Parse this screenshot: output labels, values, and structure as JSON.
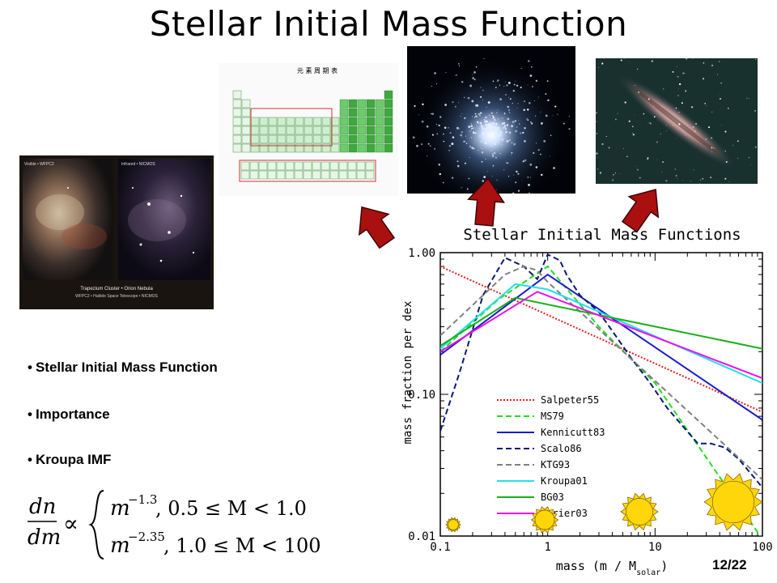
{
  "slide": {
    "title": "Stellar Initial Mass Function",
    "page_number": "12/22"
  },
  "images": {
    "orion": {
      "left_label": "Visible • WFPC2",
      "right_label": "Infrared • NICMOS",
      "caption_line1": "Trapezium Cluster • Orion Nebula",
      "caption_line2": "WFPC2 • Hubble Space Telescope • NICMOS"
    },
    "periodic_table": {
      "heading": "元 素 周 期 表"
    }
  },
  "bullets": [
    "Stellar Initial Mass Function",
    "Importance",
    "Kroupa IMF"
  ],
  "equation": {
    "lhs_num": "dn",
    "lhs_den": "dm",
    "proportional": "∝",
    "case1_base": "m",
    "case1_exp": "−1.3",
    "case1_cond": ", 0.5 ≤ M < 1.0",
    "case2_base": "m",
    "case2_exp": "−2.35",
    "case2_cond": ", 1.0 ≤ M < 100"
  },
  "chart_data": {
    "type": "line",
    "title": "Stellar Initial Mass Functions",
    "xlabel": "mass (m / M",
    "xlabel_sub": "solar",
    "xlabel_close": ")",
    "ylabel": "mass fraction per dex",
    "xscale": "log",
    "yscale": "log",
    "xlim": [
      0.1,
      100
    ],
    "ylim": [
      0.01,
      1.0
    ],
    "xticks": [
      0.1,
      1,
      10,
      100
    ],
    "xtick_labels": [
      "0.1",
      "1",
      "10",
      "100"
    ],
    "yticks": [
      0.01,
      0.1,
      1.0
    ],
    "ytick_labels": [
      "0.01",
      "0.10",
      "1.00"
    ],
    "legend_position": "lower-middle",
    "series": [
      {
        "name": "Salpeter55",
        "color": "#e02020",
        "dash": "dot",
        "x": [
          0.1,
          100
        ],
        "y": [
          0.8,
          0.075
        ]
      },
      {
        "name": "MS79",
        "color": "#22dd22",
        "dash": "dash",
        "x": [
          0.1,
          0.35,
          1,
          3,
          10,
          100
        ],
        "y": [
          0.2,
          0.47,
          0.8,
          0.3,
          0.12,
          0.0095
        ]
      },
      {
        "name": "Kennicutt83",
        "color": "#1a1acc",
        "dash": "solid",
        "x": [
          0.1,
          1,
          100
        ],
        "y": [
          0.19,
          0.7,
          0.066
        ]
      },
      {
        "name": "Scalo86",
        "color": "#0a1a6e",
        "dash": "dash",
        "x": [
          0.1,
          0.15,
          0.25,
          0.4,
          0.6,
          0.8,
          1.0,
          1.3,
          1.5,
          2.0,
          3.0,
          4.0,
          6.0,
          9.0,
          13,
          18,
          25,
          33,
          45,
          60,
          100
        ],
        "y": [
          0.055,
          0.14,
          0.5,
          0.92,
          0.8,
          0.65,
          0.97,
          0.88,
          0.7,
          0.5,
          0.38,
          0.28,
          0.18,
          0.12,
          0.08,
          0.06,
          0.045,
          0.045,
          0.042,
          0.035,
          0.022
        ]
      },
      {
        "name": "KTG93",
        "color": "#808080",
        "dash": "dash",
        "x": [
          0.1,
          0.25,
          0.4,
          0.6,
          0.8,
          1.0,
          100
        ],
        "y": [
          0.26,
          0.5,
          0.7,
          0.8,
          0.75,
          0.62,
          0.025
        ]
      },
      {
        "name": "Kroupa01",
        "color": "#22e0e8",
        "dash": "solid",
        "x": [
          0.1,
          0.5,
          1,
          100
        ],
        "y": [
          0.21,
          0.6,
          0.55,
          0.12
        ]
      },
      {
        "name": "BG03",
        "color": "#18b018",
        "dash": "solid",
        "x": [
          0.1,
          0.5,
          100
        ],
        "y": [
          0.22,
          0.48,
          0.21
        ]
      },
      {
        "name": "Chabrier03",
        "color": "#ee10ee",
        "dash": "solid",
        "x": [
          0.1,
          0.8,
          100
        ],
        "y": [
          0.2,
          0.53,
          0.13
        ]
      }
    ],
    "legend_visible_labels": [
      "Salpeter55",
      "MS79",
      "Kennicutt83",
      "Scalo86",
      "KTG93",
      "Kroupa01",
      "BG03",
      "abrier03"
    ]
  },
  "colors": {
    "arrow_fill": "#aa1010",
    "arrow_stroke": "#3a0505",
    "sun_fill": "#ffd60a",
    "sun_stroke": "#8a6a00"
  }
}
